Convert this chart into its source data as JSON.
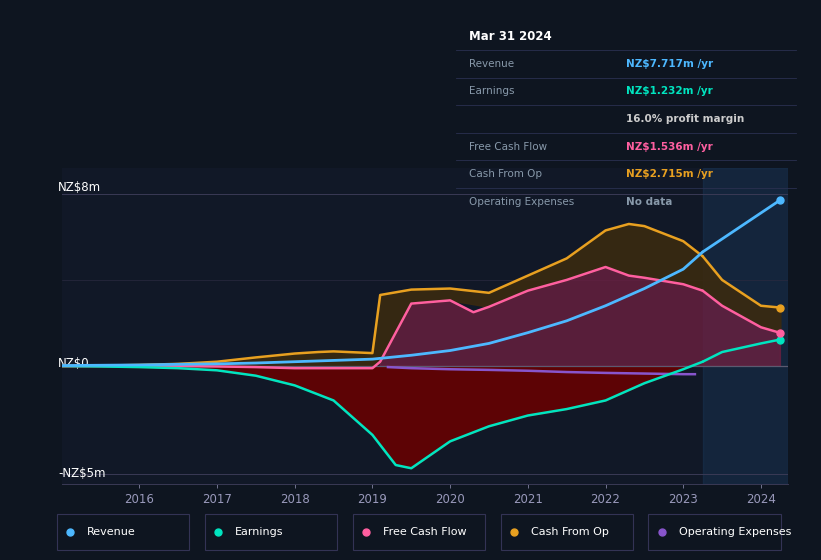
{
  "bg_color": "#0e1520",
  "plot_bg_color": "#111827",
  "ylabel_top": "NZ$8m",
  "ylabel_mid": "NZ$0",
  "ylabel_bot": "-NZ$5m",
  "xlim": [
    2015.0,
    2024.35
  ],
  "ylim": [
    -5.5,
    9.2
  ],
  "x_ticks": [
    2016,
    2017,
    2018,
    2019,
    2020,
    2021,
    2022,
    2023,
    2024
  ],
  "forecast_x": 2023.25,
  "revenue_color": "#4db8ff",
  "earnings_color": "#00e5c0",
  "fcf_color": "#ff5fa0",
  "cashop_color": "#e8a020",
  "opex_color": "#8855cc",
  "tooltip_bg": "#0a0f1a",
  "tooltip_border": "#2a3050",
  "tooltip_date": "Mar 31 2024",
  "tooltip_rows": [
    {
      "label": "Revenue",
      "val": "NZ$7.717m /yr",
      "val_color": "#4db8ff",
      "label_color": "#8899aa"
    },
    {
      "label": "Earnings",
      "val": "NZ$1.232m /yr",
      "val_color": "#00e5c0",
      "label_color": "#8899aa"
    },
    {
      "label": "",
      "val": "16.0% profit margin",
      "val_color": "#cccccc",
      "label_color": "#8899aa"
    },
    {
      "label": "Free Cash Flow",
      "val": "NZ$1.536m /yr",
      "val_color": "#ff5fa0",
      "label_color": "#8899aa"
    },
    {
      "label": "Cash From Op",
      "val": "NZ$2.715m /yr",
      "val_color": "#e8a020",
      "label_color": "#8899aa"
    },
    {
      "label": "Operating Expenses",
      "val": "No data",
      "val_color": "#8899aa",
      "label_color": "#8899aa"
    }
  ],
  "legend_items": [
    {
      "color": "#4db8ff",
      "label": "Revenue"
    },
    {
      "color": "#00e5c0",
      "label": "Earnings"
    },
    {
      "color": "#ff5fa0",
      "label": "Free Cash Flow"
    },
    {
      "color": "#e8a020",
      "label": "Cash From Op"
    },
    {
      "color": "#8855cc",
      "label": "Operating Expenses"
    }
  ],
  "revenue_x": [
    2015.0,
    2015.3,
    2016.0,
    2016.5,
    2017.0,
    2017.5,
    2018.0,
    2018.5,
    2019.0,
    2019.5,
    2020.0,
    2020.5,
    2021.0,
    2021.5,
    2022.0,
    2022.5,
    2023.0,
    2023.25,
    2024.25
  ],
  "revenue_y": [
    0.02,
    0.03,
    0.05,
    0.08,
    0.1,
    0.14,
    0.2,
    0.26,
    0.32,
    0.5,
    0.72,
    1.05,
    1.55,
    2.1,
    2.8,
    3.6,
    4.5,
    5.3,
    7.717
  ],
  "earnings_x": [
    2015.0,
    2015.5,
    2016.0,
    2016.5,
    2017.0,
    2017.5,
    2018.0,
    2018.5,
    2019.0,
    2019.3,
    2019.5,
    2020.0,
    2020.5,
    2021.0,
    2021.5,
    2022.0,
    2022.5,
    2023.0,
    2023.25,
    2023.5,
    2024.0,
    2024.25
  ],
  "earnings_y": [
    0.0,
    -0.02,
    -0.05,
    -0.1,
    -0.2,
    -0.45,
    -0.9,
    -1.6,
    -3.2,
    -4.6,
    -4.75,
    -3.5,
    -2.8,
    -2.3,
    -2.0,
    -1.6,
    -0.8,
    -0.15,
    0.2,
    0.65,
    1.05,
    1.232
  ],
  "fcf_x": [
    2015.0,
    2015.5,
    2016.0,
    2016.5,
    2017.0,
    2017.5,
    2018.0,
    2018.5,
    2019.0,
    2019.1,
    2019.5,
    2020.0,
    2020.3,
    2020.5,
    2021.0,
    2021.5,
    2022.0,
    2022.3,
    2022.5,
    2023.0,
    2023.25,
    2023.5,
    2024.0,
    2024.25
  ],
  "fcf_y": [
    0.0,
    0.0,
    0.0,
    0.0,
    -0.02,
    -0.05,
    -0.1,
    -0.1,
    -0.1,
    0.2,
    2.9,
    3.05,
    2.5,
    2.75,
    3.5,
    4.0,
    4.6,
    4.2,
    4.1,
    3.8,
    3.5,
    2.8,
    1.8,
    1.536
  ],
  "cashop_x": [
    2015.0,
    2015.5,
    2016.0,
    2016.5,
    2017.0,
    2017.5,
    2018.0,
    2018.3,
    2018.5,
    2019.0,
    2019.1,
    2019.5,
    2020.0,
    2020.5,
    2021.0,
    2021.5,
    2022.0,
    2022.3,
    2022.5,
    2023.0,
    2023.25,
    2023.5,
    2024.0,
    2024.25
  ],
  "cashop_y": [
    0.0,
    0.02,
    0.05,
    0.1,
    0.2,
    0.4,
    0.58,
    0.65,
    0.68,
    0.6,
    3.3,
    3.55,
    3.6,
    3.4,
    4.2,
    5.0,
    6.3,
    6.6,
    6.5,
    5.8,
    5.1,
    4.0,
    2.8,
    2.715
  ],
  "opex_x": [
    2019.2,
    2019.5,
    2020.0,
    2020.5,
    2021.0,
    2021.5,
    2022.0,
    2022.5,
    2023.0,
    2023.15
  ],
  "opex_y": [
    -0.05,
    -0.1,
    -0.15,
    -0.18,
    -0.22,
    -0.28,
    -0.32,
    -0.35,
    -0.38,
    -0.38
  ]
}
